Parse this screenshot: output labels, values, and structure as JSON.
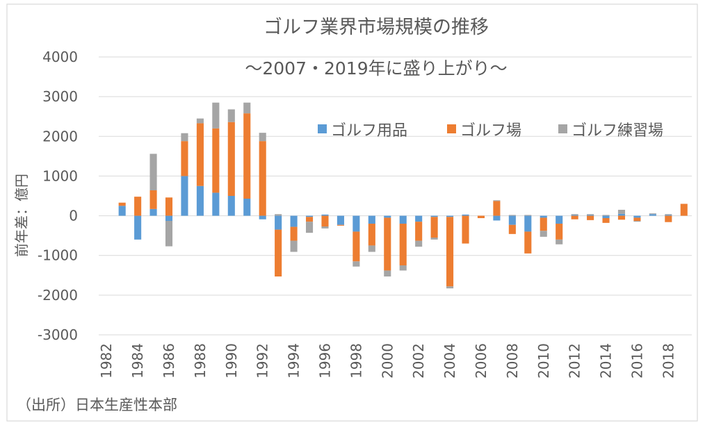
{
  "chart_data": {
    "type": "bar",
    "stacked": true,
    "title": "ゴルフ業界市場規模の推移",
    "subtitle": "～2007・2019年に盛り上がり～",
    "ylabel": "前年差：億円",
    "xlabel": "",
    "source_note": "（出所）日本生産性本部",
    "ylim": [
      -3000,
      4000
    ],
    "yticks": [
      4000,
      3000,
      2000,
      1000,
      0,
      -1000,
      -2000,
      -3000
    ],
    "grid": true,
    "legend_position": "top-right",
    "categories": [
      1982,
      1983,
      1984,
      1985,
      1986,
      1987,
      1988,
      1989,
      1990,
      1991,
      1992,
      1993,
      1994,
      1995,
      1996,
      1997,
      1998,
      1999,
      2000,
      2001,
      2002,
      2003,
      2004,
      2005,
      2006,
      2007,
      2008,
      2009,
      2010,
      2011,
      2012,
      2013,
      2014,
      2015,
      2016,
      2017,
      2018,
      2019
    ],
    "xtick_labels": [
      "1982",
      "1984",
      "1986",
      "1988",
      "1990",
      "1992",
      "1994",
      "1996",
      "1998",
      "2000",
      "2002",
      "2004",
      "2006",
      "2008",
      "2010",
      "2012",
      "2014",
      "2016",
      "2018"
    ],
    "series": [
      {
        "name": "ゴルフ用品",
        "color": "#5B9BD5",
        "values": [
          0,
          250,
          -600,
          170,
          -130,
          1000,
          750,
          580,
          500,
          430,
          -90,
          -350,
          -280,
          -30,
          30,
          -230,
          -400,
          -200,
          -50,
          -200,
          -150,
          -30,
          -30,
          30,
          0,
          -120,
          -230,
          -400,
          -50,
          -200,
          20,
          20,
          -60,
          50,
          -50,
          40,
          20,
          0
        ]
      },
      {
        "name": "ゴルフ場",
        "color": "#ED7D31",
        "values": [
          0,
          80,
          480,
          470,
          460,
          880,
          1580,
          1620,
          1860,
          2150,
          1880,
          -1180,
          -350,
          -120,
          -270,
          -20,
          -750,
          -550,
          -1330,
          -1050,
          -480,
          -520,
          -1750,
          -700,
          -60,
          370,
          -230,
          -550,
          -330,
          -400,
          -90,
          -110,
          -120,
          -100,
          -80,
          0,
          -160,
          300
        ]
      },
      {
        "name": "ゴルフ練習場",
        "color": "#A5A5A5",
        "values": [
          0,
          0,
          0,
          920,
          -640,
          200,
          120,
          650,
          320,
          270,
          210,
          40,
          -280,
          -280,
          -50,
          0,
          -130,
          -160,
          -150,
          -130,
          -150,
          -50,
          -50,
          0,
          0,
          20,
          20,
          20,
          -150,
          -120,
          20,
          20,
          20,
          100,
          -20,
          20,
          20,
          0
        ]
      }
    ]
  }
}
